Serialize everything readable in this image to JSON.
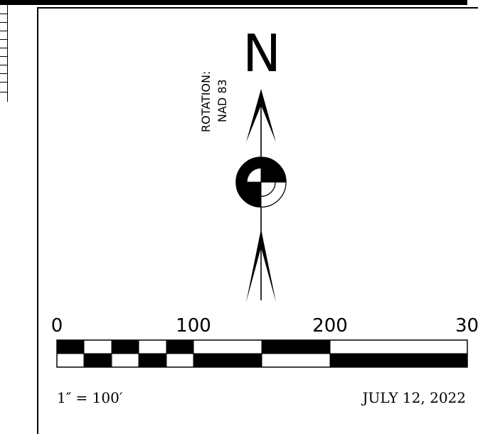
{
  "north_arrow": {
    "letter": "N",
    "rotation_label_line1": "ROTATION:",
    "rotation_label_line2": "NAD 83"
  },
  "scale_bar": {
    "tick_labels": [
      "0",
      "100",
      "200",
      "30"
    ]
  },
  "footer": {
    "scale_text": "1″ = 100′",
    "date": "JULY 12, 2022"
  },
  "colors": {
    "ink": "#000000",
    "paper": "#ffffff"
  }
}
